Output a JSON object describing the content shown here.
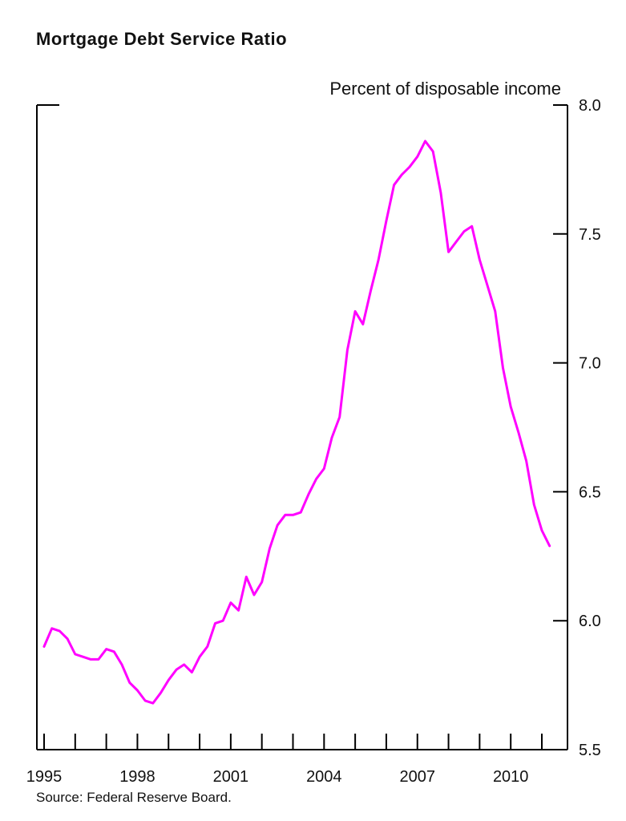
{
  "chart_data": {
    "type": "line",
    "title": "Mortgage Debt Service Ratio",
    "units_label": "Percent of disposable income",
    "source": "Source: Federal Reserve Board.",
    "xlabel": "",
    "ylabel": "",
    "xlim": [
      1995,
      2011.5
    ],
    "ylim": [
      5.5,
      8.0
    ],
    "y_axis_side": "right",
    "grid": false,
    "y_ticks": [
      5.5,
      6.0,
      6.5,
      7.0,
      7.5,
      8.0
    ],
    "y_tick_labels": [
      "5.5",
      "6.0",
      "6.5",
      "7.0",
      "7.5",
      "8.0"
    ],
    "x_tick_labels": [
      {
        "x": 1995,
        "label": "1995"
      },
      {
        "x": 1998,
        "label": "1998"
      },
      {
        "x": 2001,
        "label": "2001"
      },
      {
        "x": 2004,
        "label": "2004"
      },
      {
        "x": 2007,
        "label": "2007"
      },
      {
        "x": 2010,
        "label": "2010"
      }
    ],
    "x_minor_ticks": [
      1995,
      1996,
      1997,
      1998,
      1999,
      2000,
      2001,
      2002,
      2003,
      2004,
      2005,
      2006,
      2007,
      2008,
      2009,
      2010,
      2011
    ],
    "series": [
      {
        "color": "#ff00ff",
        "x": [
          1995.0,
          1995.25,
          1995.5,
          1995.75,
          1996.0,
          1996.25,
          1996.5,
          1996.75,
          1997.0,
          1997.25,
          1997.5,
          1997.75,
          1998.0,
          1998.25,
          1998.5,
          1998.75,
          1999.0,
          1999.25,
          1999.5,
          1999.75,
          2000.0,
          2000.25,
          2000.5,
          2000.75,
          2001.0,
          2001.25,
          2001.5,
          2001.75,
          2002.0,
          2002.25,
          2002.5,
          2002.75,
          2003.0,
          2003.25,
          2003.5,
          2003.75,
          2004.0,
          2004.25,
          2004.5,
          2004.75,
          2005.0,
          2005.25,
          2005.5,
          2005.75,
          2006.0,
          2006.25,
          2006.5,
          2006.75,
          2007.0,
          2007.25,
          2007.5,
          2007.75,
          2008.0,
          2008.25,
          2008.5,
          2008.75,
          2009.0,
          2009.25,
          2009.5,
          2009.75,
          2010.0,
          2010.25,
          2010.5,
          2010.75,
          2011.0,
          2011.25
        ],
        "values": [
          5.9,
          5.97,
          5.96,
          5.93,
          5.87,
          5.86,
          5.85,
          5.85,
          5.89,
          5.88,
          5.83,
          5.76,
          5.73,
          5.69,
          5.68,
          5.72,
          5.77,
          5.81,
          5.83,
          5.8,
          5.86,
          5.9,
          5.99,
          6.0,
          6.07,
          6.04,
          6.17,
          6.1,
          6.15,
          6.28,
          6.37,
          6.41,
          6.41,
          6.42,
          6.49,
          6.55,
          6.59,
          6.71,
          6.79,
          7.05,
          7.2,
          7.15,
          7.28,
          7.4,
          7.55,
          7.69,
          7.73,
          7.76,
          7.8,
          7.86,
          7.82,
          7.66,
          7.43,
          7.47,
          7.51,
          7.53,
          7.4,
          7.3,
          7.2,
          6.98,
          6.83,
          6.73,
          6.62,
          6.45,
          6.35,
          6.29
        ]
      }
    ]
  }
}
